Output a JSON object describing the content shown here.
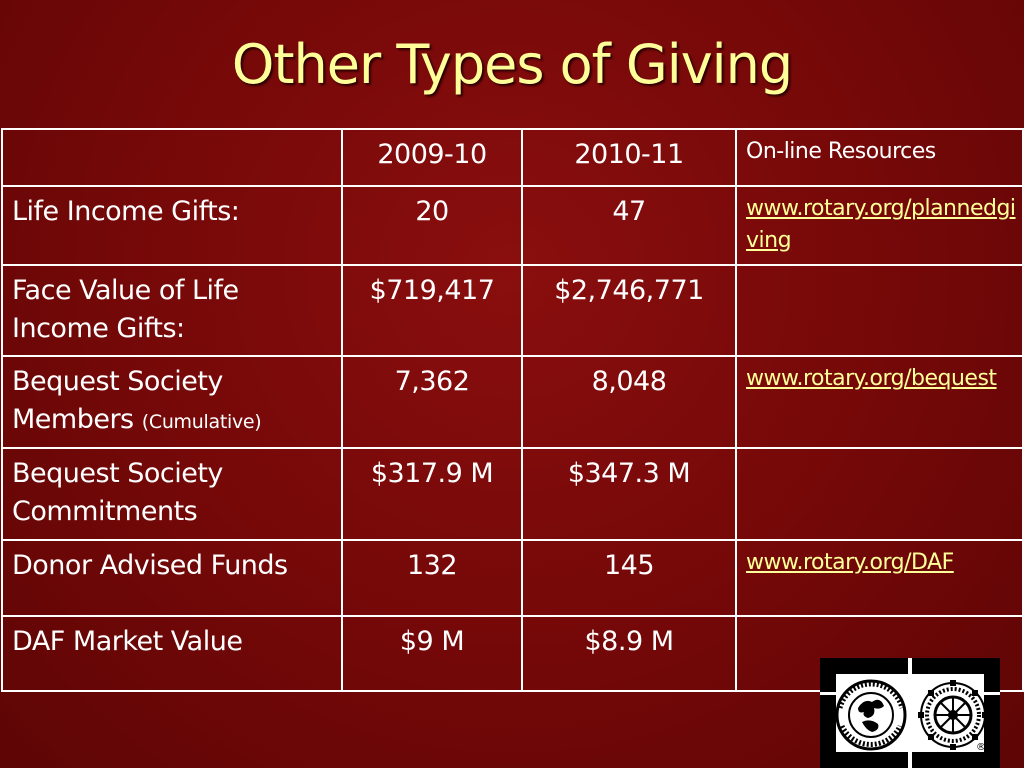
{
  "slide": {
    "title": "Other Types of Giving"
  },
  "table": {
    "headers": {
      "year1": "2009-10",
      "year2": "2010-11",
      "resources": "On-line Resources"
    },
    "rows": [
      {
        "label": "Life Income Gifts:",
        "v1": "20",
        "v2": "47",
        "link": "www.rotary.org/plannedgiving"
      },
      {
        "label": "Face Value of Life Income Gifts:",
        "v1": "$719,417",
        "v2": "$2,746,771",
        "link": ""
      },
      {
        "label": "Bequest Society Members",
        "label_note": "(Cumulative)",
        "v1": "7,362",
        "v2": "8,048",
        "link": "www.rotary.org/bequest"
      },
      {
        "label": "Bequest Society Commitments",
        "v1": "$317.9 M",
        "v2": "$347.3 M",
        "link": ""
      },
      {
        "label": "Donor Advised Funds",
        "v1": "132",
        "v2": "145",
        "link": "www.rotary.org/DAF"
      },
      {
        "label": "DAF Market Value",
        "v1": "$9 M",
        "v2": "$8.9 M",
        "link": ""
      }
    ]
  },
  "logos": {
    "left_seal_text": "THE ROTARY FOUNDATION OF ROTARY INTERNATIONAL",
    "right_seal_text": "ROTARY INTERNATIONAL",
    "registered_mark": "®"
  },
  "colors": {
    "background": "#740808",
    "title": "#ffff99",
    "link": "#ffff99",
    "table_border": "#ffffff"
  }
}
